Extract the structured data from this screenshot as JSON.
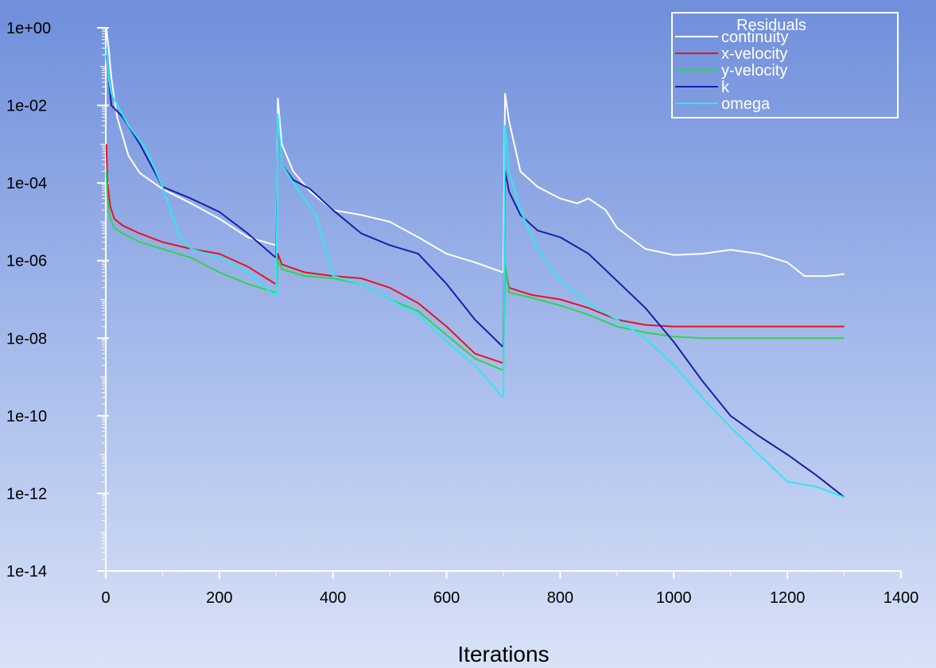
{
  "chart_data": {
    "type": "line",
    "title": "",
    "xlabel": "Iterations",
    "ylabel": "",
    "y_scale": "log",
    "xlim": [
      0,
      1400
    ],
    "ylim": [
      1e-14,
      1
    ],
    "x_ticks": [
      0,
      200,
      400,
      600,
      800,
      1000,
      1200,
      1400
    ],
    "x_tick_labels": [
      "0",
      "200",
      "400",
      "600",
      "800",
      "1000",
      "1200",
      "1400"
    ],
    "y_ticks": [
      1e-14,
      1e-12,
      1e-10,
      1e-08,
      1e-06,
      0.0001,
      0.01,
      1
    ],
    "y_tick_labels": [
      "1e-14",
      "1e-12",
      "1e-10",
      "1e-08",
      "1e-06",
      "1e-04",
      "1e-02",
      "1e+00"
    ],
    "grid": false,
    "legend": {
      "title": "Residuals",
      "position": "top-right"
    },
    "colors": {
      "axis": "#ffffff",
      "text": "#000000",
      "legend_text": "#ffffff"
    },
    "series": [
      {
        "name": "continuity",
        "color": "#ffffff",
        "segments": [
          [
            [
              1,
              1
            ],
            [
              5,
              0.3
            ],
            [
              10,
              0.05
            ],
            [
              20,
              0.005
            ],
            [
              40,
              0.0005
            ],
            [
              60,
              0.00018
            ],
            [
              100,
              7e-05
            ],
            [
              150,
              3e-05
            ],
            [
              200,
              1.2e-05
            ],
            [
              250,
              4e-06
            ],
            [
              299,
              2.5e-06
            ]
          ],
          [
            [
              300,
              2.5e-06
            ],
            [
              303,
              0.015
            ],
            [
              310,
              0.001
            ],
            [
              330,
              0.0002
            ],
            [
              360,
              6e-05
            ],
            [
              400,
              2e-05
            ],
            [
              450,
              1.5e-05
            ],
            [
              500,
              1e-05
            ],
            [
              550,
              4e-06
            ],
            [
              600,
              1.5e-06
            ],
            [
              650,
              9e-07
            ],
            [
              699,
              5e-07
            ]
          ],
          [
            [
              700,
              5e-07
            ],
            [
              703,
              0.02
            ],
            [
              710,
              0.004
            ],
            [
              730,
              0.0002
            ],
            [
              760,
              8e-05
            ],
            [
              800,
              4e-05
            ],
            [
              830,
              3e-05
            ],
            [
              850,
              4e-05
            ],
            [
              880,
              2e-05
            ],
            [
              900,
              7e-06
            ],
            [
              950,
              2e-06
            ],
            [
              1000,
              1.4e-06
            ],
            [
              1050,
              1.5e-06
            ],
            [
              1100,
              1.9e-06
            ],
            [
              1150,
              1.5e-06
            ],
            [
              1200,
              9e-07
            ],
            [
              1230,
              4e-07
            ],
            [
              1270,
              4e-07
            ],
            [
              1300,
              4.5e-07
            ]
          ]
        ]
      },
      {
        "name": "x-velocity",
        "color": "#e5141e",
        "segments": [
          [
            [
              1,
              0.001
            ],
            [
              3,
              0.0001
            ],
            [
              8,
              2.5e-05
            ],
            [
              15,
              1.2e-05
            ],
            [
              30,
              8e-06
            ],
            [
              60,
              5e-06
            ],
            [
              100,
              3e-06
            ],
            [
              150,
              2e-06
            ],
            [
              200,
              1.5e-06
            ],
            [
              250,
              7e-07
            ],
            [
              299,
              2.5e-07
            ]
          ],
          [
            [
              300,
              2.5e-07
            ],
            [
              303,
              1.5e-06
            ],
            [
              310,
              8e-07
            ],
            [
              350,
              5e-07
            ],
            [
              400,
              4e-07
            ],
            [
              450,
              3.5e-07
            ],
            [
              500,
              2e-07
            ],
            [
              550,
              8e-08
            ],
            [
              600,
              2e-08
            ],
            [
              650,
              4e-09
            ],
            [
              699,
              2.3e-09
            ]
          ],
          [
            [
              700,
              2.3e-09
            ],
            [
              703,
              7e-07
            ],
            [
              710,
              2e-07
            ],
            [
              750,
              1.3e-07
            ],
            [
              800,
              1e-07
            ],
            [
              850,
              6e-08
            ],
            [
              900,
              3e-08
            ],
            [
              950,
              2.2e-08
            ],
            [
              1000,
              2e-08
            ],
            [
              1100,
              2e-08
            ],
            [
              1200,
              2e-08
            ],
            [
              1300,
              2e-08
            ]
          ]
        ]
      },
      {
        "name": "y-velocity",
        "color": "#2fd44c",
        "segments": [
          [
            [
              1,
              0.0002
            ],
            [
              3,
              4e-05
            ],
            [
              8,
              1.2e-05
            ],
            [
              15,
              7e-06
            ],
            [
              30,
              5e-06
            ],
            [
              60,
              3e-06
            ],
            [
              100,
              2e-06
            ],
            [
              150,
              1.2e-06
            ],
            [
              200,
              5e-07
            ],
            [
              250,
              2.5e-07
            ],
            [
              299,
              1.5e-07
            ]
          ],
          [
            [
              300,
              1.5e-07
            ],
            [
              303,
              1e-06
            ],
            [
              310,
              6e-07
            ],
            [
              350,
              4e-07
            ],
            [
              400,
              3.5e-07
            ],
            [
              450,
              2.5e-07
            ],
            [
              500,
              1e-07
            ],
            [
              550,
              5e-08
            ],
            [
              600,
              1.2e-08
            ],
            [
              650,
              3e-09
            ],
            [
              699,
              1.5e-09
            ]
          ],
          [
            [
              700,
              1.5e-09
            ],
            [
              703,
              8e-07
            ],
            [
              710,
              1.5e-07
            ],
            [
              750,
              1.1e-07
            ],
            [
              800,
              7e-08
            ],
            [
              850,
              4e-08
            ],
            [
              900,
              2e-08
            ],
            [
              950,
              1.4e-08
            ],
            [
              1000,
              1.1e-08
            ],
            [
              1050,
              1e-08
            ],
            [
              1100,
              1e-08
            ],
            [
              1200,
              1e-08
            ],
            [
              1300,
              1e-08
            ]
          ]
        ]
      },
      {
        "name": "k",
        "color": "#1a1fa8",
        "segments": [
          [
            [
              1,
              0.2
            ],
            [
              5,
              0.05
            ],
            [
              10,
              0.01
            ],
            [
              30,
              0.005
            ],
            [
              60,
              0.001
            ],
            [
              100,
              8e-05
            ],
            [
              150,
              4e-05
            ],
            [
              200,
              1.8e-05
            ],
            [
              250,
              5e-06
            ],
            [
              299,
              1.2e-06
            ]
          ],
          [
            [
              300,
              1.2e-06
            ],
            [
              303,
              0.005
            ],
            [
              310,
              0.0003
            ],
            [
              330,
              0.00012
            ],
            [
              360,
              7e-05
            ],
            [
              400,
              2e-05
            ],
            [
              450,
              5e-06
            ],
            [
              500,
              2.5e-06
            ],
            [
              550,
              1.5e-06
            ],
            [
              600,
              2.5e-07
            ],
            [
              650,
              3e-08
            ],
            [
              699,
              6e-09
            ]
          ],
          [
            [
              700,
              6e-09
            ],
            [
              703,
              0.0002
            ],
            [
              710,
              6e-05
            ],
            [
              730,
              1.5e-05
            ],
            [
              760,
              6e-06
            ],
            [
              800,
              4e-06
            ],
            [
              850,
              1.5e-06
            ],
            [
              900,
              3e-07
            ],
            [
              950,
              6e-08
            ],
            [
              1000,
              8e-09
            ],
            [
              1050,
              8e-10
            ],
            [
              1100,
              1e-10
            ],
            [
              1150,
              3e-11
            ],
            [
              1200,
              1e-11
            ],
            [
              1250,
              3e-12
            ],
            [
              1300,
              8e-13
            ]
          ]
        ]
      },
      {
        "name": "omega",
        "color": "#2ee8ee",
        "segments": [
          [
            [
              1,
              0.3
            ],
            [
              5,
              0.05
            ],
            [
              10,
              0.02
            ],
            [
              40,
              0.003
            ],
            [
              70,
              0.0008
            ],
            [
              100,
              8e-05
            ],
            [
              130,
              4e-06
            ],
            [
              150,
              2e-06
            ],
            [
              200,
              1.2e-06
            ],
            [
              250,
              5e-07
            ],
            [
              299,
              1.2e-07
            ]
          ],
          [
            [
              300,
              1.2e-07
            ],
            [
              303,
              0.006
            ],
            [
              310,
              0.0003
            ],
            [
              340,
              6e-05
            ],
            [
              370,
              1.5e-05
            ],
            [
              400,
              4e-07
            ],
            [
              450,
              2.5e-07
            ],
            [
              500,
              1e-07
            ],
            [
              550,
              4e-08
            ],
            [
              600,
              8e-09
            ],
            [
              650,
              2e-09
            ],
            [
              699,
              3e-10
            ]
          ],
          [
            [
              700,
              3e-10
            ],
            [
              703,
              0.003
            ],
            [
              710,
              0.0002
            ],
            [
              730,
              2e-05
            ],
            [
              760,
              2e-06
            ],
            [
              800,
              3e-07
            ],
            [
              850,
              8e-08
            ],
            [
              900,
              3e-08
            ],
            [
              950,
              1e-08
            ],
            [
              1000,
              2e-09
            ],
            [
              1050,
              3e-10
            ],
            [
              1100,
              5e-11
            ],
            [
              1150,
              1e-11
            ],
            [
              1200,
              2e-12
            ],
            [
              1250,
              1.5e-12
            ],
            [
              1300,
              8e-13
            ]
          ]
        ]
      }
    ]
  }
}
